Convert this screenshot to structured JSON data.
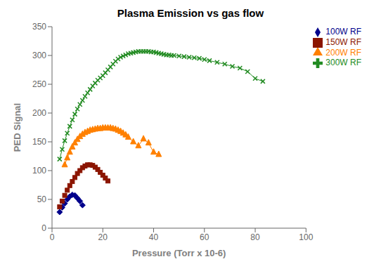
{
  "chart_data": {
    "type": "line",
    "title": "Plasma Emission vs gas flow",
    "xlabel": "Pressure (Torr x 10-6)",
    "ylabel": "PED Signal",
    "xlim": [
      0,
      100
    ],
    "ylim": [
      0,
      350
    ],
    "xticks": [
      0,
      20,
      40,
      60,
      80,
      100
    ],
    "yticks": [
      0,
      50,
      100,
      150,
      200,
      250,
      300,
      350
    ],
    "grid": false,
    "legend": "upper right",
    "series": [
      {
        "name": "100W RF",
        "color": "#00008B",
        "marker": "diamond",
        "line_style": "none",
        "x": [
          3,
          4,
          5,
          6,
          7,
          8,
          9,
          10,
          11,
          12
        ],
        "values": [
          28,
          36,
          43,
          50,
          55,
          58,
          57,
          52,
          47,
          40
        ]
      },
      {
        "name": "150W RF",
        "color": "#8B1500",
        "marker": "square",
        "line_style": "none",
        "x": [
          3,
          4,
          5,
          6,
          7,
          8,
          9,
          10,
          11,
          12,
          13,
          14,
          15,
          16,
          17,
          18,
          19,
          20,
          21,
          22
        ],
        "values": [
          37,
          47,
          57,
          66,
          74,
          81,
          88,
          95,
          100,
          105,
          108,
          110,
          110,
          109,
          106,
          102,
          97,
          92,
          87,
          82
        ]
      },
      {
        "name": "200W RF",
        "color": "#FF8000",
        "marker": "triangle",
        "line_style": "solid",
        "x": [
          5,
          6,
          7,
          8,
          9,
          10,
          11,
          12,
          13,
          14,
          15,
          16,
          17,
          18,
          19,
          20,
          21,
          22,
          23,
          24,
          25,
          26,
          27,
          28,
          29,
          30,
          32,
          34,
          36,
          38,
          40,
          42
        ],
        "values": [
          110,
          122,
          132,
          141,
          148,
          154,
          159,
          163,
          166,
          168,
          170,
          171,
          172,
          173,
          173,
          174,
          174,
          174,
          174,
          173,
          172,
          170,
          168,
          165,
          162,
          158,
          150,
          143,
          155,
          148,
          132,
          128
        ]
      },
      {
        "name": "300W RF",
        "color": "#228B22",
        "marker": "x",
        "line_style": "solid",
        "x": [
          3,
          4,
          5,
          6,
          7,
          8,
          9,
          10,
          11,
          12,
          13,
          14,
          15,
          16,
          17,
          18,
          19,
          20,
          21,
          22,
          23,
          24,
          25,
          26,
          27,
          28,
          29,
          30,
          31,
          32,
          33,
          34,
          35,
          36,
          37,
          38,
          39,
          40,
          41,
          42,
          43,
          44,
          45,
          46,
          47,
          48,
          50,
          52,
          54,
          56,
          58,
          60,
          62,
          65,
          68,
          71,
          74,
          77,
          80,
          83
        ],
        "values": [
          120,
          137,
          152,
          165,
          177,
          188,
          198,
          207,
          215,
          222,
          229,
          235,
          241,
          247,
          252,
          257,
          261,
          265,
          270,
          275,
          280,
          285,
          290,
          294,
          297,
          299,
          301,
          303,
          304,
          305,
          306,
          307,
          307,
          307,
          307,
          307,
          306,
          306,
          305,
          304,
          303,
          302,
          301,
          301,
          300,
          300,
          299,
          298,
          297,
          296,
          295,
          293,
          291,
          288,
          285,
          281,
          278,
          272,
          260,
          255
        ]
      }
    ]
  }
}
